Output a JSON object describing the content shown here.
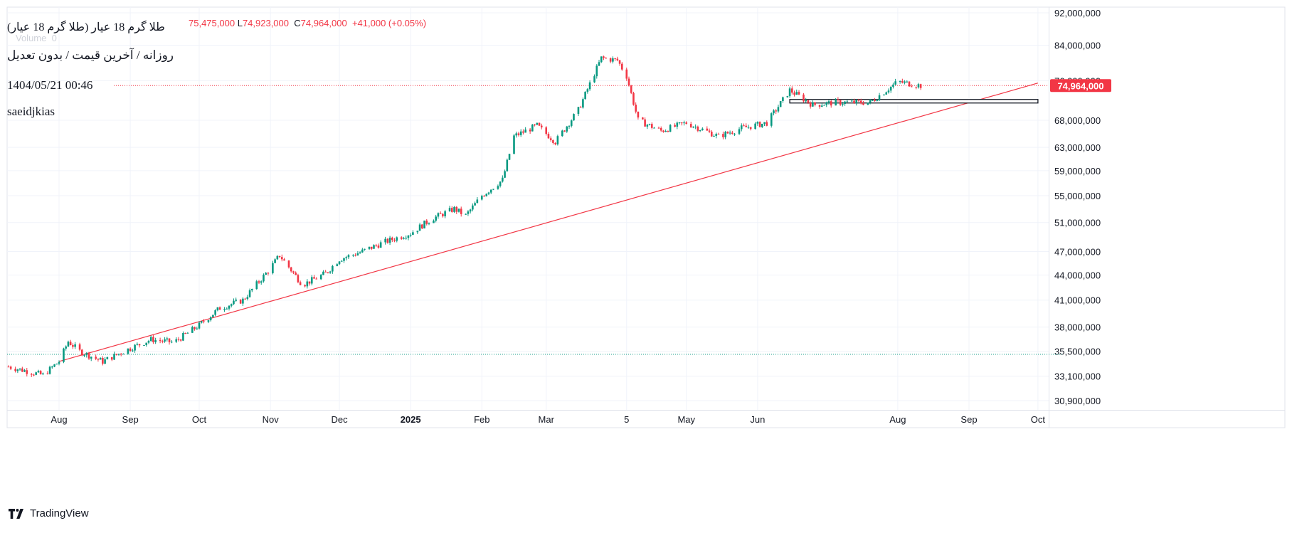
{
  "header": {
    "symbol_title": "طلا گرم 18 عیار (طلا گرم 18 عیار)",
    "ohlc_high": "75,475,000",
    "ohlc_low_label": "L",
    "ohlc_low": "74,923,000",
    "ohlc_close_label": "C",
    "ohlc_close": "74,964,000",
    "ohlc_change": "+41,000 (+0.05%)",
    "volume_label": "Volume",
    "volume_value": "0",
    "interval_line": "روزانه / آخرین قیمت / بدون تعدیل",
    "timestamp": "1404/05/21 00:46",
    "author": "saeidjkias"
  },
  "footer": {
    "brand": "TradingView"
  },
  "colors": {
    "up": "#089981",
    "down": "#f23645",
    "trendline": "#f23645",
    "grid": "#f0f3fa",
    "text": "#131722",
    "axis_text": "#131722"
  },
  "chart_data": {
    "type": "candlestick",
    "price_scale": "log",
    "y_axis_ticks": [
      "92,000,000",
      "84,000,000",
      "76,000,000",
      "68,000,000",
      "63,000,000",
      "59,000,000",
      "55,000,000",
      "51,000,000",
      "47,000,000",
      "44,000,000",
      "41,000,000",
      "38,000,000",
      "35,500,000",
      "33,100,000",
      "30,900,000"
    ],
    "x_axis_ticks": [
      "Aug",
      "Sep",
      "Oct",
      "Nov",
      "Dec",
      "2025",
      "Feb",
      "Mar",
      "5",
      "May",
      "Jun",
      "Aug",
      "Sep",
      "Oct"
    ],
    "last_price_label": "74,964,000",
    "last_price": 74964000,
    "series": [
      {
        "name": "close_path",
        "points": [
          [
            "2024-07-10",
            34000000
          ],
          [
            "2024-07-25",
            33200000
          ],
          [
            "2024-08-01",
            34500000
          ],
          [
            "2024-08-05",
            36500000
          ],
          [
            "2024-08-10",
            35500000
          ],
          [
            "2024-08-20",
            34500000
          ],
          [
            "2024-08-30",
            35600000
          ],
          [
            "2024-09-10",
            36700000
          ],
          [
            "2024-09-20",
            36400000
          ],
          [
            "2024-10-01",
            38200000
          ],
          [
            "2024-10-10",
            40100000
          ],
          [
            "2024-10-20",
            41000000
          ],
          [
            "2024-10-31",
            44500000
          ],
          [
            "2024-11-05",
            46500000
          ],
          [
            "2024-11-15",
            42800000
          ],
          [
            "2024-11-25",
            44200000
          ],
          [
            "2024-12-01",
            46000000
          ],
          [
            "2024-12-10",
            46900000
          ],
          [
            "2024-12-20",
            48200000
          ],
          [
            "2025-01-01",
            49500000
          ],
          [
            "2025-01-10",
            51500000
          ],
          [
            "2025-01-20",
            53000000
          ],
          [
            "2025-01-25",
            52000000
          ],
          [
            "2025-02-01",
            55000000
          ],
          [
            "2025-02-10",
            57500000
          ],
          [
            "2025-02-15",
            65000000
          ],
          [
            "2025-02-25",
            67000000
          ],
          [
            "2025-03-05",
            64000000
          ],
          [
            "2025-03-15",
            70000000
          ],
          [
            "2025-03-25",
            81000000
          ],
          [
            "2025-04-01",
            80500000
          ],
          [
            "2025-04-05",
            77000000
          ],
          [
            "2025-04-10",
            68000000
          ],
          [
            "2025-04-20",
            66000000
          ],
          [
            "2025-05-01",
            67500000
          ],
          [
            "2025-05-15",
            65000000
          ],
          [
            "2025-05-25",
            66500000
          ],
          [
            "2025-06-05",
            67500000
          ],
          [
            "2025-06-15",
            74000000
          ],
          [
            "2025-06-25",
            71000000
          ],
          [
            "2025-07-05",
            71500000
          ],
          [
            "2025-07-20",
            71500000
          ],
          [
            "2025-08-01",
            75800000
          ],
          [
            "2025-08-11",
            74964000
          ]
        ]
      }
    ],
    "trendline": {
      "start": [
        "2024-08-01",
        34500000
      ],
      "end": [
        "2025-10-01",
        75500000
      ]
    },
    "horizontal_lines": [
      {
        "price": 74964000,
        "style": "dotted",
        "color": "#f23645"
      },
      {
        "price": 35200000,
        "style": "dotted",
        "color": "#089981"
      }
    ],
    "zone": {
      "from": "2025-06-15",
      "to": "2025-10-01",
      "low": 71500000,
      "high": 72100000
    }
  }
}
